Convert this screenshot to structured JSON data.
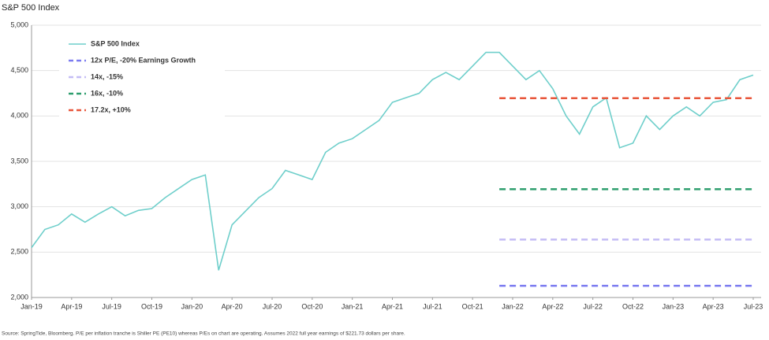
{
  "chart_data": {
    "type": "line",
    "title": "S&P 500 Index",
    "source": "Source: SpringTide, Bloomberg. P/E per inflation tranche is Shiller PE (PE10) whereas P/Es on chart are operating. Assumes 2022 full year earnings of $221.73 dollars per share.",
    "categories": [
      "Jan-19",
      null,
      null,
      "Apr-19",
      null,
      null,
      "Jul-19",
      null,
      null,
      "Oct-19",
      null,
      null,
      "Jan-20",
      null,
      null,
      "Apr-20",
      null,
      null,
      "Jul-20",
      null,
      null,
      "Oct-20",
      null,
      null,
      "Jan-21",
      null,
      null,
      "Apr-21",
      null,
      null,
      "Jul-21",
      null,
      null,
      "Oct-21",
      null,
      null,
      "Jan-22",
      null,
      null,
      "Apr-22",
      null,
      null,
      "Jul-22",
      null,
      null,
      "Oct-22",
      null,
      null,
      "Jan-23",
      null,
      null,
      "Apr-23",
      null,
      null,
      "Jul-23"
    ],
    "series": [
      {
        "name": "S&P 500 Index",
        "color": "#6fcfcb",
        "style": "solid",
        "values": [
          2550,
          2750,
          2800,
          2920,
          2830,
          2920,
          3000,
          2900,
          2960,
          2980,
          3100,
          3200,
          3300,
          3350,
          2300,
          2800,
          2950,
          3100,
          3200,
          3400,
          3350,
          3300,
          3600,
          3700,
          3750,
          3850,
          3950,
          4150,
          4200,
          4250,
          4400,
          4480,
          4400,
          4550,
          4700,
          4700,
          4550,
          4400,
          4500,
          4300,
          4000,
          3800,
          4100,
          4200,
          3650,
          3700,
          4000,
          3850,
          4000,
          4100,
          4000,
          4150,
          4180,
          4400,
          4450
        ]
      },
      {
        "name": "12x P/E, -20% Earnings Growth",
        "color": "#7b7bf0",
        "style": "dashed",
        "values": [
          null,
          null,
          null,
          null,
          null,
          null,
          null,
          null,
          null,
          null,
          null,
          null,
          null,
          null,
          null,
          null,
          null,
          null,
          null,
          null,
          null,
          null,
          null,
          null,
          null,
          null,
          null,
          null,
          null,
          null,
          null,
          null,
          null,
          null,
          null,
          2129,
          2129,
          2129,
          2129,
          2129,
          2129,
          2129,
          2129,
          2129,
          2129,
          2129,
          2129,
          2129,
          2129,
          2129,
          2129,
          2129,
          2129,
          2129,
          2129
        ]
      },
      {
        "name": "14x, -15%",
        "color": "#c4bcf5",
        "style": "dashed",
        "values": [
          null,
          null,
          null,
          null,
          null,
          null,
          null,
          null,
          null,
          null,
          null,
          null,
          null,
          null,
          null,
          null,
          null,
          null,
          null,
          null,
          null,
          null,
          null,
          null,
          null,
          null,
          null,
          null,
          null,
          null,
          null,
          null,
          null,
          null,
          null,
          2638,
          2638,
          2638,
          2638,
          2638,
          2638,
          2638,
          2638,
          2638,
          2638,
          2638,
          2638,
          2638,
          2638,
          2638,
          2638,
          2638,
          2638,
          2638,
          2638
        ]
      },
      {
        "name": "16x, -10%",
        "color": "#2e9e6e",
        "style": "dashed",
        "values": [
          null,
          null,
          null,
          null,
          null,
          null,
          null,
          null,
          null,
          null,
          null,
          null,
          null,
          null,
          null,
          null,
          null,
          null,
          null,
          null,
          null,
          null,
          null,
          null,
          null,
          null,
          null,
          null,
          null,
          null,
          null,
          null,
          null,
          null,
          null,
          3193,
          3193,
          3193,
          3193,
          3193,
          3193,
          3193,
          3193,
          3193,
          3193,
          3193,
          3193,
          3193,
          3193,
          3193,
          3193,
          3193,
          3193,
          3193,
          3193
        ]
      },
      {
        "name": "17.2x, +10%",
        "color": "#e8553a",
        "style": "dashed",
        "values": [
          null,
          null,
          null,
          null,
          null,
          null,
          null,
          null,
          null,
          null,
          null,
          null,
          null,
          null,
          null,
          null,
          null,
          null,
          null,
          null,
          null,
          null,
          null,
          null,
          null,
          null,
          null,
          null,
          null,
          null,
          null,
          null,
          null,
          null,
          null,
          4195,
          4195,
          4195,
          4195,
          4195,
          4195,
          4195,
          4195,
          4195,
          4195,
          4195,
          4195,
          4195,
          4195,
          4195,
          4195,
          4195,
          4195,
          4195,
          4195
        ]
      }
    ],
    "ylim": [
      2000,
      5000
    ],
    "yticks": [
      {
        "value": 2000,
        "label": "2,000"
      },
      {
        "value": 2500,
        "label": "2,500"
      },
      {
        "value": 3000,
        "label": "3,000"
      },
      {
        "value": 3500,
        "label": "3,500"
      },
      {
        "value": 4000,
        "label": "4,000"
      },
      {
        "value": 4500,
        "label": "4,500"
      },
      {
        "value": 5000,
        "label": "5,000"
      }
    ],
    "grid": true,
    "legend": "upper-left"
  }
}
